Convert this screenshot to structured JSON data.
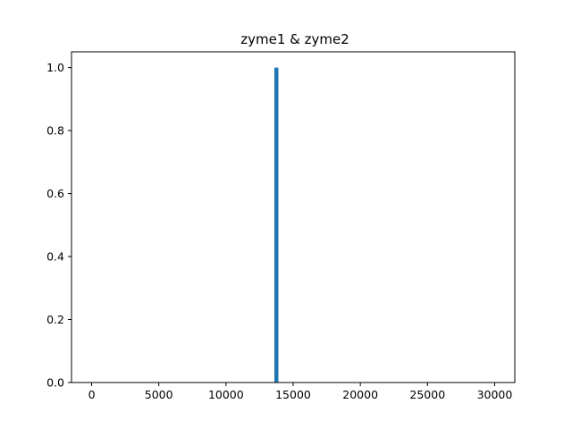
{
  "chart_data": {
    "type": "bar",
    "title": "zyme1 & zyme2",
    "xlabel": "",
    "ylabel": "",
    "bars": [
      {
        "x": 13600,
        "width": 300,
        "value": 1.0
      }
    ],
    "xlim": [
      -1500,
      31500
    ],
    "ylim": [
      0.0,
      1.05
    ],
    "xticks": [
      0,
      5000,
      10000,
      15000,
      20000,
      25000,
      30000
    ],
    "xtick_labels": [
      "0",
      "5000",
      "10000",
      "15000",
      "20000",
      "25000",
      "30000"
    ],
    "yticks": [
      0.0,
      0.2,
      0.4,
      0.6,
      0.8,
      1.0
    ],
    "ytick_labels": [
      "0.0",
      "0.2",
      "0.4",
      "0.6",
      "0.8",
      "1.0"
    ],
    "grid": false,
    "bar_color": "#1f77b4"
  }
}
